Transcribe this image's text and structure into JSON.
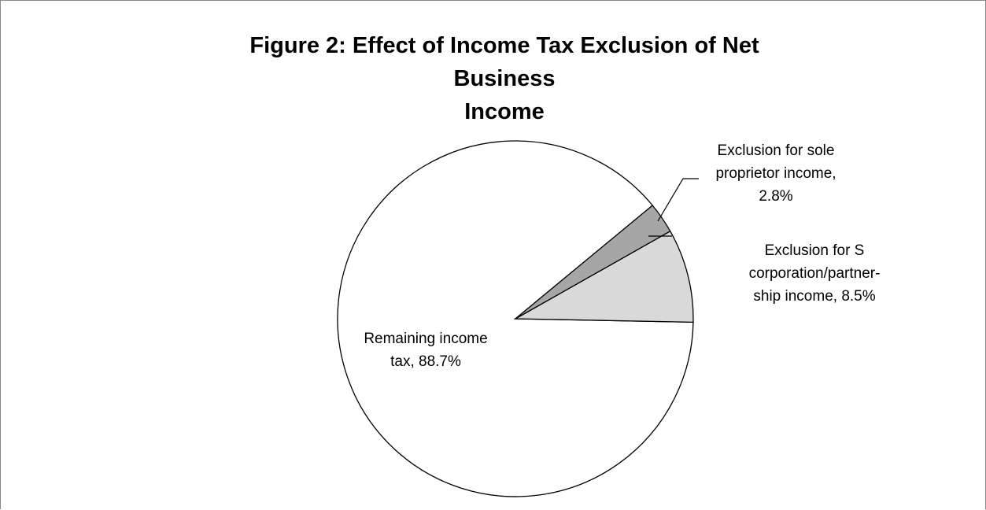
{
  "chart_data": {
    "type": "pie",
    "title": "Figure  2: Effect of Income Tax Exclusion of Net Business Income",
    "title_lines": [
      "Figure  2: Effect of Income Tax Exclusion of Net Business",
      "Income"
    ],
    "slices": [
      {
        "label": "Remaining income tax",
        "value": 88.7,
        "display_value": "88.7%",
        "color": "#ffffff",
        "label_lines": [
          "Remaining income",
          "tax, 88.7%"
        ]
      },
      {
        "label": "Exclusion for S corporation/partnership income",
        "value": 8.5,
        "display_value": "8.5%",
        "color": "#d9d9d9",
        "label_lines": [
          "Exclusion for S",
          "corporation/partner-",
          "ship income, 8.5%"
        ]
      },
      {
        "label": "Exclusion for sole proprietor income",
        "value": 2.8,
        "display_value": "2.8%",
        "color": "#a6a6a6",
        "label_lines": [
          "Exclusion for sole",
          "proprietor income,",
          "2.8%"
        ]
      }
    ],
    "outline_color": "#000000",
    "frame_color": "#8a8a8a",
    "legend": "none"
  }
}
